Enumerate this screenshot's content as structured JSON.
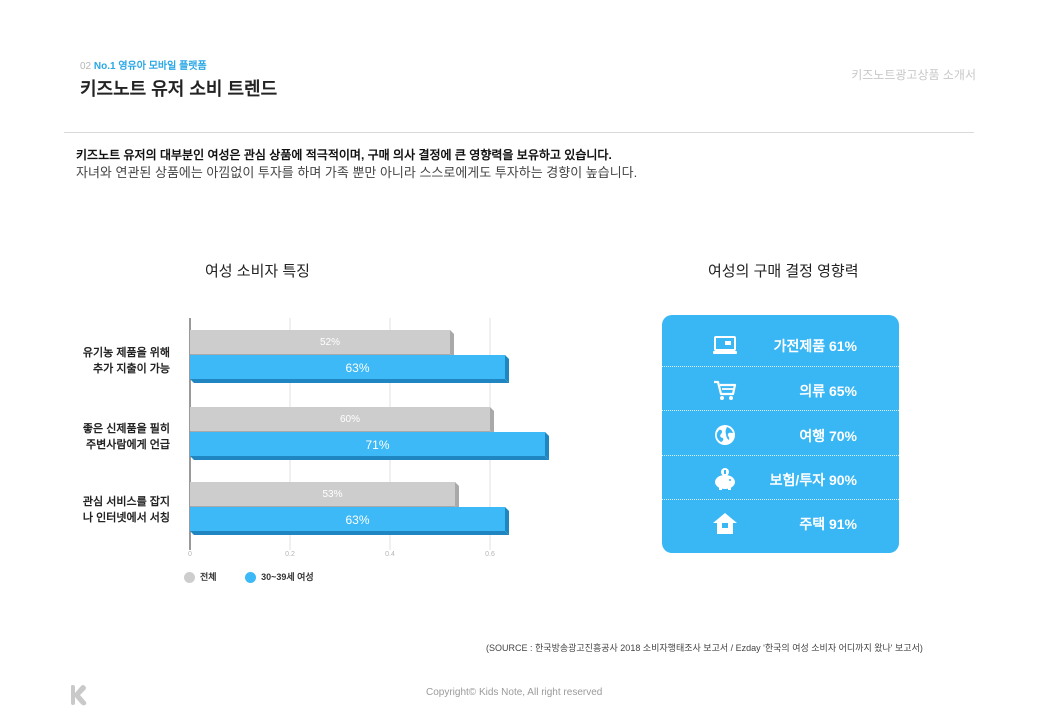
{
  "header": {
    "section_number": "02",
    "section_label": "No.1 영유아 모바일 플랫폼",
    "title": "키즈노트 유저 소비 트렌드",
    "corner_label": "키즈노트광고상품 소개서"
  },
  "intro": {
    "line1": "키즈노트 유저의 대부분인 여성은 관심 상품에 적극적이며, 구매 의사 결정에 큰 영향력을 보유하고 있습니다.",
    "line2": "자녀와 연관된 상품에는 아낌없이 투자를 하며 가족 뿐만 아니라 스스로에게도 투자하는 경향이 높습니다."
  },
  "left_chart_title": "여성 소비자 특징",
  "right_panel_title": "여성의 구매 결정 영향력",
  "chart_data": {
    "type": "bar",
    "orientation": "horizontal",
    "categories": [
      {
        "line1": "유기농 제품을 위해",
        "line2": "추가 지출이 가능"
      },
      {
        "line1": "좋은 신제품을 필히",
        "line2": "주변사람에게 언급"
      },
      {
        "line1": "관심 서비스를 잡지",
        "line2": "나 인터넷에서 서칭"
      }
    ],
    "series": [
      {
        "name": "전체",
        "values": [
          52,
          60,
          53
        ],
        "labels": [
          "52%",
          "60%",
          "53%"
        ],
        "color": "#cdcdcd",
        "dark": "#a9a9a9"
      },
      {
        "name": "30~39세 여성",
        "values": [
          63,
          71,
          63
        ],
        "labels": [
          "63%",
          "71%",
          "63%"
        ],
        "color": "#3cb9f6",
        "dark": "#1f86c2"
      }
    ],
    "xlim": [
      0,
      100
    ],
    "x_ticks": [
      "0",
      "0.2",
      "0.4",
      "0.6"
    ],
    "x_tick_values": [
      0,
      20,
      40,
      60
    ],
    "grid": true,
    "legend_position": "bottom-left"
  },
  "influence": [
    {
      "icon": "laptop-icon",
      "label": "가전제품 61%"
    },
    {
      "icon": "cart-icon",
      "label": "의류 65%"
    },
    {
      "icon": "globe-icon",
      "label": "여행 70%"
    },
    {
      "icon": "piggy-bank-icon",
      "label": "보험/투자 90%"
    },
    {
      "icon": "house-icon",
      "label": "주택 91%"
    }
  ],
  "colors": {
    "accent": "#39b7f5",
    "accent_text": "#2aa7e6",
    "gray_bar": "#cdcdcd"
  },
  "source": "(SOURCE : 한국방송광고진흥공사 2018 소비자행태조사 보고서 / Ezday '한국의 여성 소비자 어디까지 왔나' 보고서)",
  "copyright": "Copyright© Kids Note, All right reserved"
}
